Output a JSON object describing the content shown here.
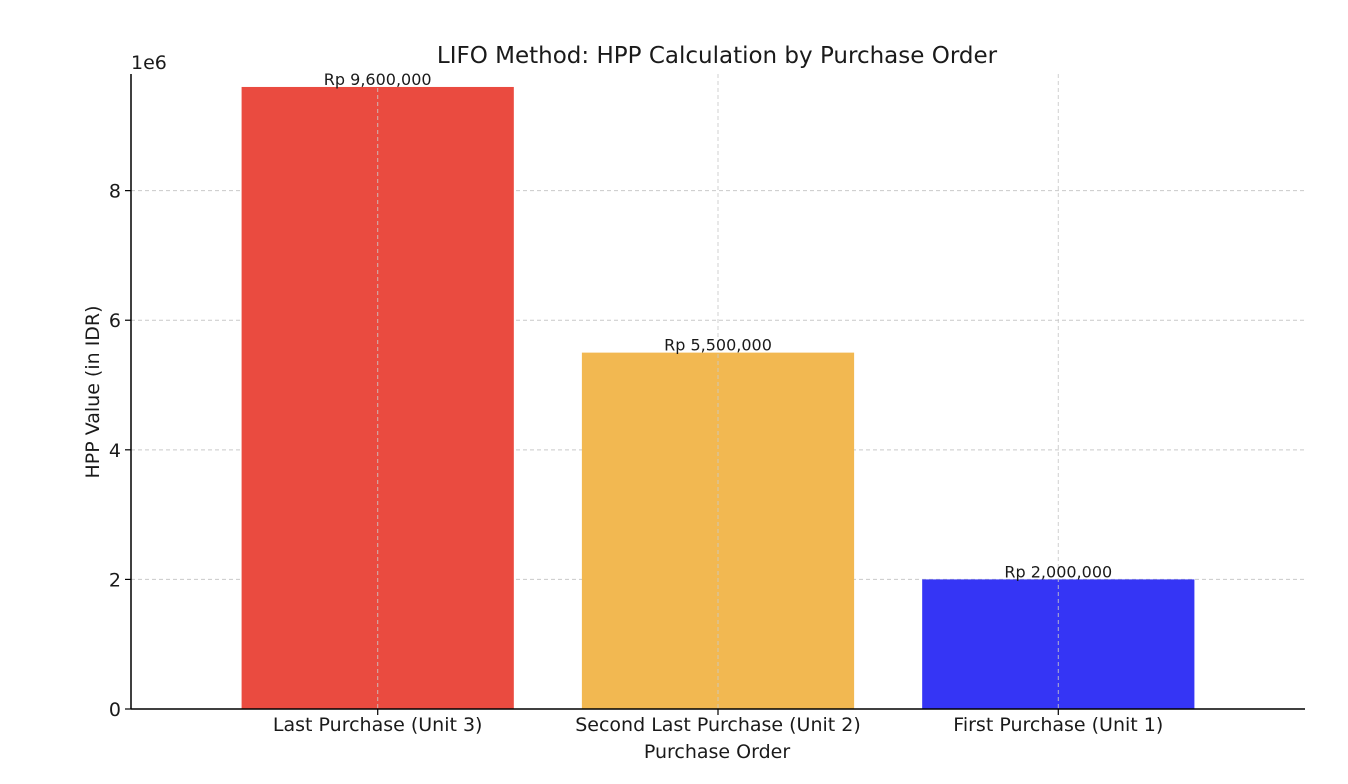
{
  "chart_data": {
    "type": "bar",
    "title": "LIFO Method: HPP Calculation by Purchase Order",
    "xlabel": "Purchase Order",
    "ylabel": "HPP Value (in IDR)",
    "y_scale_label": "1e6",
    "ylim": [
      0,
      9800000
    ],
    "yticks": [
      0,
      2000000,
      4000000,
      6000000,
      8000000
    ],
    "ytick_labels": [
      "0",
      "2",
      "4",
      "6",
      "8"
    ],
    "grid": true,
    "categories": [
      "Last Purchase (Unit 3)",
      "Second Last Purchase (Unit 2)",
      "First Purchase (Unit 1)"
    ],
    "values": [
      9600000,
      5500000,
      2000000
    ],
    "data_labels": [
      "Rp 9,600,000",
      "Rp 5,500,000",
      "Rp 2,000,000"
    ],
    "colors": [
      "#ea4b40",
      "#f2b851",
      "#3535f5"
    ]
  }
}
